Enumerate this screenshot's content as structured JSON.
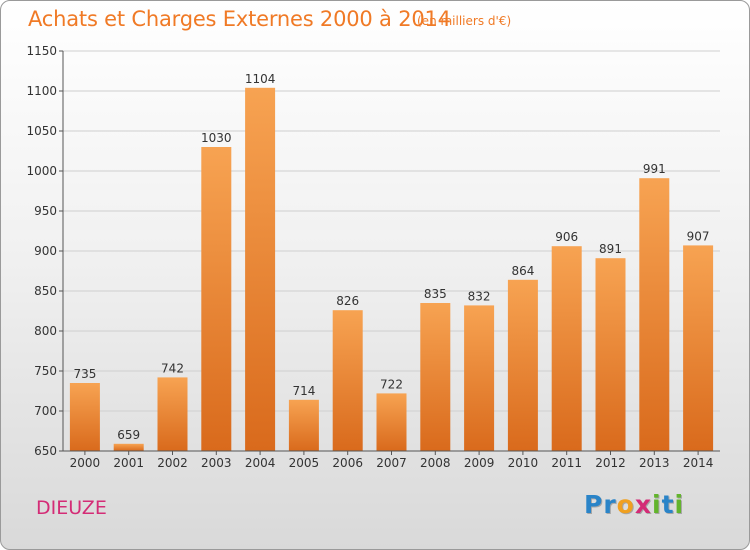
{
  "title": "Achats et Charges Externes 2000 à 2014",
  "unit_note": "(en milliers d'€)",
  "city": "DIEUZE",
  "logo": {
    "letters": [
      "P",
      "r",
      "o",
      "x",
      "i",
      "t",
      "i"
    ],
    "colors": [
      "#2a84c8",
      "#2a84c8",
      "#f0a020",
      "#d42c76",
      "#62b42c",
      "#2a84c8",
      "#62b42c"
    ]
  },
  "colors": {
    "title": "#f07a26",
    "bar_light": "#f7a352",
    "bar_dark": "#d96a1c",
    "city": "#d42c76"
  },
  "chart_data": {
    "type": "bar",
    "title": "Achats et Charges Externes 2000 à 2014",
    "subtitle": "(en milliers d'€)",
    "categories": [
      "2000",
      "2001",
      "2002",
      "2003",
      "2004",
      "2005",
      "2006",
      "2007",
      "2008",
      "2009",
      "2010",
      "2011",
      "2012",
      "2013",
      "2014"
    ],
    "values": [
      735,
      659,
      742,
      1030,
      1104,
      714,
      826,
      722,
      835,
      832,
      864,
      906,
      891,
      991,
      907
    ],
    "ylim": [
      650,
      1150
    ],
    "yticks": [
      650,
      700,
      750,
      800,
      850,
      900,
      950,
      1000,
      1050,
      1100,
      1150
    ],
    "grid": "horizontal",
    "data_labels": true
  }
}
